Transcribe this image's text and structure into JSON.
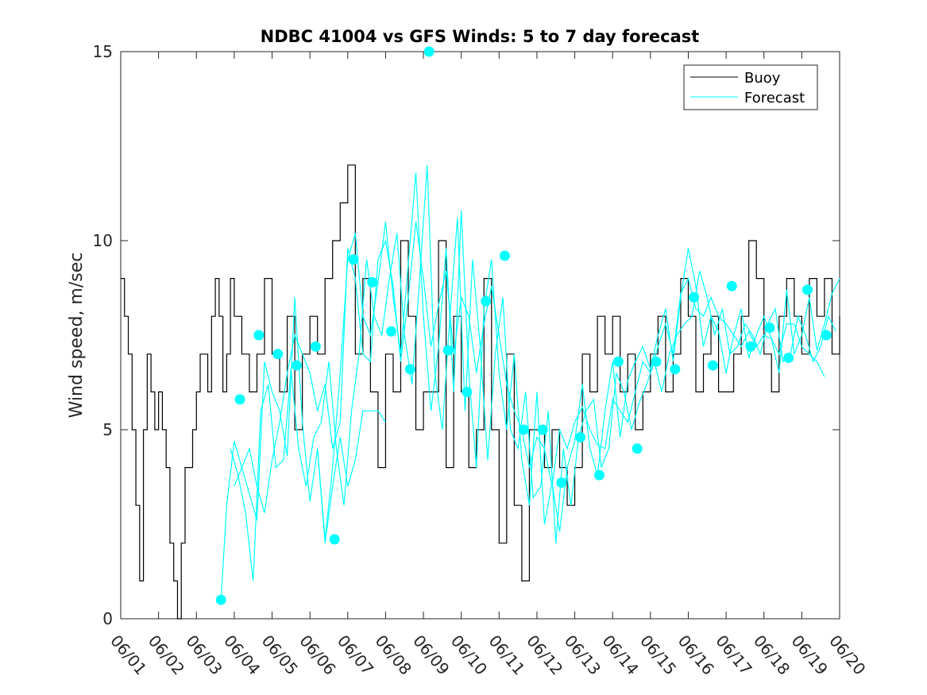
{
  "chart_data": {
    "type": "line",
    "title": "NDBC 41004 vs GFS Winds: 5 to 7 day forecast",
    "xlabel": "",
    "ylabel": "Wind speed, m/sec",
    "xlim": [
      0,
      19
    ],
    "ylim": [
      0,
      15
    ],
    "x_tick_values": [
      0,
      1,
      2,
      3,
      4,
      5,
      6,
      7,
      8,
      9,
      10,
      11,
      12,
      13,
      14,
      15,
      16,
      17,
      18,
      19
    ],
    "x_tick_labels": [
      "06/01",
      "06/02",
      "06/03",
      "06/04",
      "06/05",
      "06/06",
      "06/07",
      "06/08",
      "06/09",
      "06/10",
      "06/11",
      "06/12",
      "06/13",
      "06/14",
      "06/15",
      "06/16",
      "06/17",
      "06/18",
      "06/19",
      "06/20"
    ],
    "y_ticks": [
      0,
      5,
      10,
      15
    ],
    "legend": {
      "position": "top-right",
      "entries": [
        "Buoy",
        "Forecast"
      ]
    },
    "colors": {
      "buoy": "#000000",
      "forecast": "#00ffff"
    },
    "series": [
      {
        "name": "Buoy",
        "style": "stairs",
        "x": [
          0,
          0.1,
          0.2,
          0.3,
          0.4,
          0.5,
          0.6,
          0.7,
          0.8,
          0.9,
          1.0,
          1.1,
          1.2,
          1.3,
          1.4,
          1.5,
          1.6,
          1.7,
          1.8,
          1.9,
          2.0,
          2.1,
          2.2,
          2.3,
          2.4,
          2.5,
          2.6,
          2.7,
          2.8,
          2.9,
          3.0,
          3.2,
          3.4,
          3.6,
          3.8,
          4.0,
          4.2,
          4.4,
          4.6,
          4.8,
          5.0,
          5.2,
          5.4,
          5.6,
          5.8,
          6.0,
          6.2,
          6.4,
          6.6,
          6.8,
          7.0,
          7.2,
          7.4,
          7.6,
          7.8,
          8.0,
          8.2,
          8.4,
          8.6,
          8.8,
          9.0,
          9.2,
          9.4,
          9.6,
          9.8,
          10.0,
          10.2,
          10.4,
          10.6,
          10.8,
          11.0,
          11.2,
          11.4,
          11.6,
          11.8,
          12.0,
          12.2,
          12.4,
          12.6,
          12.8,
          13.0,
          13.2,
          13.4,
          13.6,
          13.8,
          14.0,
          14.2,
          14.4,
          14.6,
          14.8,
          15.0,
          15.2,
          15.4,
          15.6,
          15.8,
          16.0,
          16.2,
          16.4,
          16.6,
          16.8,
          17.0,
          17.2,
          17.4,
          17.6,
          17.8,
          18.0,
          18.2,
          18.4,
          18.6,
          18.8,
          19.0
        ],
        "y": [
          9,
          8,
          7,
          5,
          3,
          1,
          5,
          7,
          6,
          5,
          6,
          5,
          4,
          2,
          1,
          0,
          2,
          4,
          4,
          5,
          6,
          7,
          7,
          6,
          8,
          9,
          8,
          6,
          7,
          9,
          8,
          7,
          6,
          7,
          9,
          7,
          6,
          8,
          5,
          7,
          8,
          7,
          9,
          10,
          11,
          12,
          7,
          9,
          6,
          4,
          7,
          6,
          10,
          8,
          5,
          6,
          6,
          10,
          4,
          8,
          6,
          4,
          5,
          9,
          5,
          2,
          7,
          3,
          1,
          5,
          5,
          4,
          5,
          4,
          3,
          4,
          7,
          6,
          8,
          7,
          8,
          6,
          7,
          5,
          6,
          7,
          8,
          6,
          7,
          9,
          8,
          6,
          7,
          8,
          6,
          6,
          7,
          8,
          10,
          9,
          7,
          6,
          8,
          9,
          8,
          7,
          9,
          8,
          9,
          7,
          8
        ]
      },
      {
        "name": "Forecast",
        "style": "line",
        "x": [
          2.65,
          2.8,
          3.0,
          3.2,
          3.4,
          3.6,
          3.8,
          4.0,
          4.2,
          4.4,
          4.6,
          4.8,
          5.0,
          5.2,
          5.4,
          5.6,
          5.8,
          6.0,
          6.2,
          6.4,
          6.6,
          6.8,
          7.0,
          7.2,
          7.4,
          7.6,
          7.8,
          8.0,
          8.2,
          8.4,
          8.6,
          8.8,
          9.0,
          9.2,
          9.4,
          9.6,
          9.8,
          10.0,
          10.2,
          10.4,
          10.6,
          10.8,
          11.0,
          11.2,
          11.4,
          11.6,
          11.8,
          12.0,
          12.2,
          12.4,
          12.6,
          12.8,
          13.0,
          13.2,
          13.4,
          13.6,
          13.8,
          14.0,
          14.2,
          14.4,
          14.6,
          14.8,
          15.0,
          15.2,
          15.4,
          15.6,
          15.8,
          16.0,
          16.2,
          16.4,
          16.6,
          16.8,
          17.0,
          17.2,
          17.4,
          17.6,
          17.8,
          18.0,
          18.2,
          18.4,
          18.6,
          18.8,
          19.0
        ],
        "y": [
          0.5,
          3.0,
          4.7,
          4.0,
          3.3,
          2.6,
          6.8,
          6.0,
          5.5,
          4.3,
          8.5,
          5.2,
          3.1,
          4.5,
          2.1,
          4.0,
          6.5,
          9.5,
          10.2,
          8.0,
          7.5,
          8.9,
          10.5,
          8.5,
          7.0,
          9.4,
          11.8,
          8.0,
          5.5,
          7.2,
          9.8,
          6.0,
          10.8,
          6.5,
          4.0,
          8.2,
          9.5,
          6.5,
          5.0,
          7.0,
          4.2,
          3.0,
          6.0,
          2.5,
          3.6,
          2.3,
          4.0,
          4.7,
          6.2,
          4.5,
          3.8,
          5.5,
          6.8,
          4.8,
          6.3,
          6.8,
          7.2,
          6.6,
          7.5,
          8.2,
          6.8,
          8.5,
          9.8,
          8.8,
          7.2,
          8.0,
          7.6,
          6.5,
          7.5,
          8.2,
          6.9,
          7.5,
          8.0,
          7.4,
          6.5,
          8.7,
          7.0,
          7.5,
          8.5,
          7.1,
          7.8,
          8.6,
          9.0
        ]
      },
      {
        "name": "Forecast",
        "style": "line",
        "x": [
          2.9,
          3.1,
          3.3,
          3.5,
          3.7,
          3.9,
          4.1,
          4.3,
          4.5,
          4.7,
          4.9,
          5.1,
          5.3,
          5.5,
          5.7,
          5.9,
          6.1,
          6.3,
          6.5,
          6.7,
          6.9,
          7.1,
          7.3,
          7.5,
          7.7,
          7.9,
          8.1,
          8.3,
          8.5,
          8.7,
          8.9,
          9.1,
          9.3,
          9.5,
          9.7,
          9.9,
          10.1,
          10.3,
          10.5,
          10.7,
          10.9,
          11.1,
          11.3,
          11.5,
          11.7,
          11.9,
          12.1,
          12.3,
          12.5,
          12.7,
          12.9,
          13.1,
          13.3,
          13.5,
          13.7,
          13.9,
          14.1,
          14.3,
          14.5,
          14.7,
          14.9,
          15.1,
          15.3,
          15.5,
          15.7,
          15.9,
          16.1,
          16.3,
          16.5,
          16.7,
          16.9,
          17.1,
          17.3,
          17.5,
          17.7,
          17.9,
          18.1,
          18.3,
          18.5,
          18.7,
          18.9
        ],
        "y": [
          4.5,
          3.8,
          2.8,
          1.0,
          5.5,
          6.2,
          4.0,
          4.2,
          6.6,
          4.5,
          3.5,
          4.8,
          5.2,
          6.8,
          4.5,
          3.0,
          5.5,
          7.0,
          9.5,
          8.0,
          7.5,
          9.0,
          10.2,
          7.5,
          6.2,
          9.0,
          12.0,
          6.5,
          5.0,
          8.0,
          10.6,
          5.5,
          9.5,
          7.2,
          4.2,
          7.0,
          8.5,
          5.0,
          4.5,
          6.0,
          3.2,
          3.5,
          5.5,
          2.0,
          4.5,
          3.0,
          4.8,
          5.5,
          5.8,
          4.0,
          4.5,
          6.5,
          6.0,
          5.0,
          5.7,
          6.2,
          6.8,
          6.0,
          7.0,
          7.5,
          7.8,
          8.0,
          9.2,
          8.5,
          7.5,
          8.2,
          7.0,
          7.2,
          7.8,
          7.5,
          7.0,
          7.8,
          8.2,
          6.8,
          7.0,
          8.0,
          7.5,
          6.8,
          7.2,
          8.0,
          7.6
        ]
      },
      {
        "name": "Forecast",
        "style": "line",
        "x": [
          3.0,
          3.2,
          3.4,
          3.6,
          3.8,
          4.0,
          4.2,
          4.4,
          4.6,
          4.8,
          5.0,
          5.2,
          5.4,
          5.6,
          5.8,
          6.0,
          6.2,
          6.4,
          6.6,
          6.8,
          7.0,
          7.2,
          7.4,
          7.6,
          7.8,
          8.0,
          8.2,
          8.4,
          8.6,
          8.8,
          9.0,
          9.2,
          9.4,
          9.6,
          9.8,
          10.0,
          10.2,
          10.4,
          10.6,
          10.8,
          11.0,
          11.2,
          11.4,
          11.6,
          11.8,
          12.0,
          12.2,
          12.4,
          12.6,
          12.8,
          13.0,
          13.2,
          13.4,
          13.6,
          13.8,
          14.0,
          14.2,
          14.4,
          14.6,
          14.8,
          15.0,
          15.2,
          15.4,
          15.6,
          15.8,
          16.0,
          16.2,
          16.4,
          16.6,
          16.8,
          17.0,
          17.2,
          17.4,
          17.6,
          17.8,
          18.0,
          18.2,
          18.4,
          18.6
        ],
        "y": [
          3.5,
          4.0,
          4.5,
          3.5,
          2.8,
          4.2,
          5.2,
          6.5,
          7.5,
          7.0,
          6.5,
          5.5,
          6.2,
          4.5,
          5.2,
          9.8,
          9.0,
          7.0,
          6.8,
          9.5,
          10.0,
          8.8,
          6.8,
          8.5,
          10.5,
          9.0,
          7.2,
          8.3,
          9.2,
          7.0,
          8.5,
          8.0,
          6.5,
          7.8,
          8.8,
          7.5,
          6.2,
          5.5,
          5.0,
          4.0,
          4.8,
          4.5,
          3.5,
          5.0,
          4.5,
          5.2,
          5.6,
          5.0,
          4.6,
          4.5,
          5.8,
          5.5,
          5.2,
          6.0,
          6.8,
          6.5,
          7.2,
          7.8,
          7.0,
          8.6,
          9.0,
          8.2,
          8.0,
          8.5,
          8.0,
          7.8,
          7.5,
          7.2,
          7.6,
          7.2,
          7.5,
          7.4,
          7.0,
          7.8,
          7.8,
          7.2,
          7.0,
          6.8,
          6.4
        ]
      },
      {
        "name": "Forecast",
        "style": "line",
        "x": [
          5.2,
          5.4,
          5.6,
          5.8,
          6.0,
          6.2,
          6.4,
          6.6,
          6.8,
          7.0
        ],
        "y": [
          4.5,
          2.0,
          3.5,
          4.8,
          3.5,
          4.2,
          5.5,
          5.5,
          5.5,
          5.2
        ]
      }
    ],
    "markers": {
      "series": "Forecast",
      "x": [
        2.65,
        3.15,
        3.65,
        4.15,
        4.65,
        5.15,
        5.65,
        6.15,
        6.65,
        7.15,
        7.65,
        8.15,
        8.65,
        9.15,
        9.65,
        10.15,
        10.65,
        11.15,
        11.65,
        12.15,
        12.65,
        13.15,
        13.65,
        14.15,
        14.65,
        15.15,
        15.65,
        16.15,
        16.65,
        17.15,
        17.65,
        18.15,
        18.65
      ],
      "y": [
        0.5,
        5.8,
        7.5,
        7.0,
        6.7,
        7.2,
        2.1,
        9.5,
        8.9,
        7.6,
        6.6,
        15.0,
        7.1,
        6.0,
        8.4,
        9.6,
        5.0,
        5.0,
        3.6,
        4.8,
        3.8,
        6.8,
        4.5,
        6.8,
        6.6,
        8.5,
        6.7,
        8.8,
        7.2,
        7.7,
        6.9,
        8.7,
        7.5
      ]
    }
  }
}
